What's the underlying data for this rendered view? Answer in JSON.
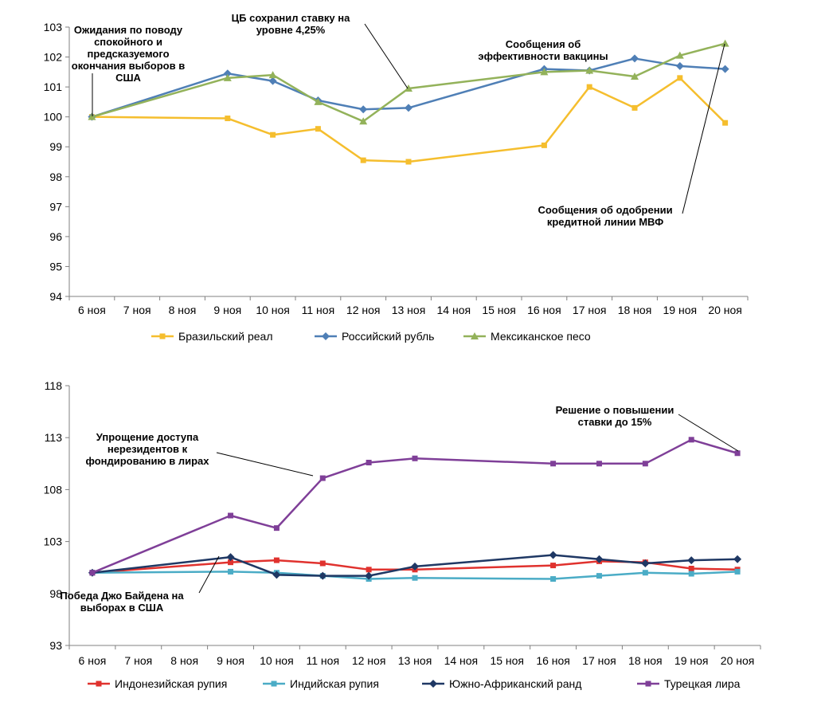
{
  "chart_data": [
    {
      "type": "line",
      "categories": [
        "6 ноя",
        "7 ноя",
        "8 ноя",
        "9 ноя",
        "10 ноя",
        "11 ноя",
        "12 ноя",
        "13 ноя",
        "14 ноя",
        "15 ноя",
        "16 ноя",
        "17 ноя",
        "18 ноя",
        "19 ноя",
        "20 ноя"
      ],
      "ylim": [
        94,
        103
      ],
      "yticks": [
        94,
        95,
        96,
        97,
        98,
        99,
        100,
        101,
        102,
        103
      ],
      "grid": false,
      "legend_position": "bottom",
      "series": [
        {
          "name": "Бразильский реал",
          "color": "#F5BE2E",
          "marker": "square",
          "points": [
            [
              0,
              100.0
            ],
            [
              3,
              99.95
            ],
            [
              4,
              99.4
            ],
            [
              5,
              99.6
            ],
            [
              6,
              98.55
            ],
            [
              7,
              98.5
            ],
            [
              10,
              99.05
            ],
            [
              11,
              101.0
            ],
            [
              12,
              100.3
            ],
            [
              13,
              101.3
            ],
            [
              14,
              99.8
            ]
          ]
        },
        {
          "name": "Российский рубль",
          "color": "#4F7FB6",
          "marker": "diamond",
          "points": [
            [
              0,
              100.0
            ],
            [
              3,
              101.45
            ],
            [
              4,
              101.2
            ],
            [
              5,
              100.55
            ],
            [
              6,
              100.25
            ],
            [
              7,
              100.3
            ],
            [
              10,
              101.6
            ],
            [
              11,
              101.55
            ],
            [
              12,
              101.95
            ],
            [
              13,
              101.7
            ],
            [
              14,
              101.6
            ]
          ]
        },
        {
          "name": "Мексиканское песо",
          "color": "#93B25A",
          "marker": "triangle",
          "points": [
            [
              0,
              100.0
            ],
            [
              3,
              101.3
            ],
            [
              4,
              101.4
            ],
            [
              5,
              100.5
            ],
            [
              6,
              99.85
            ],
            [
              7,
              100.95
            ],
            [
              10,
              101.5
            ],
            [
              11,
              101.55
            ],
            [
              12,
              101.35
            ],
            [
              13,
              102.05
            ],
            [
              14,
              102.45
            ]
          ]
        }
      ],
      "annotations": [
        {
          "id": "elections",
          "lines": [
            "Ожидания по поводу",
            "спокойного и",
            "предсказуемого",
            "окончания выборов в",
            "США"
          ],
          "target": [
            0,
            100.0
          ]
        },
        {
          "id": "rate",
          "lines": [
            "ЦБ сохранил ставку на",
            "уровне 4,25%"
          ],
          "target": [
            7,
            100.95
          ]
        },
        {
          "id": "vaccine",
          "lines": [
            "Сообщения об",
            "эффективности вакцины"
          ]
        },
        {
          "id": "imf",
          "lines": [
            "Сообщения об одобрении",
            "кредитной линии МВФ"
          ],
          "target": [
            14,
            102.45
          ]
        }
      ]
    },
    {
      "type": "line",
      "categories": [
        "6 ноя",
        "7 ноя",
        "8 ноя",
        "9 ноя",
        "10 ноя",
        "11 ноя",
        "12 ноя",
        "13 ноя",
        "14 ноя",
        "15 ноя",
        "16 ноя",
        "17 ноя",
        "18 ноя",
        "19 ноя",
        "20 ноя"
      ],
      "ylim": [
        93,
        118
      ],
      "yticks": [
        93,
        98,
        103,
        108,
        113,
        118
      ],
      "grid": false,
      "legend_position": "bottom",
      "series": [
        {
          "name": "Индонезийская рупия",
          "color": "#E0322E",
          "marker": "square",
          "points": [
            [
              0,
              100.0
            ],
            [
              3,
              101.0
            ],
            [
              4,
              101.2
            ],
            [
              5,
              100.9
            ],
            [
              6,
              100.3
            ],
            [
              7,
              100.3
            ],
            [
              10,
              100.7
            ],
            [
              11,
              101.1
            ],
            [
              12,
              101.0
            ],
            [
              13,
              100.4
            ],
            [
              14,
              100.3
            ]
          ]
        },
        {
          "name": "Индийская рупия",
          "color": "#4BACC6",
          "marker": "square",
          "points": [
            [
              0,
              100.0
            ],
            [
              3,
              100.1
            ],
            [
              4,
              100.0
            ],
            [
              5,
              99.7
            ],
            [
              6,
              99.4
            ],
            [
              7,
              99.5
            ],
            [
              10,
              99.4
            ],
            [
              11,
              99.7
            ],
            [
              12,
              100.0
            ],
            [
              13,
              99.9
            ],
            [
              14,
              100.1
            ]
          ]
        },
        {
          "name": "Южно-Африканский ранд",
          "color": "#1F3864",
          "marker": "diamond",
          "points": [
            [
              0,
              100.0
            ],
            [
              3,
              101.5
            ],
            [
              4,
              99.8
            ],
            [
              5,
              99.7
            ],
            [
              6,
              99.7
            ],
            [
              7,
              100.6
            ],
            [
              10,
              101.7
            ],
            [
              11,
              101.3
            ],
            [
              12,
              100.9
            ],
            [
              13,
              101.2
            ],
            [
              14,
              101.3
            ]
          ]
        },
        {
          "name": "Турецкая лира",
          "color": "#7F3F98",
          "marker": "square",
          "points": [
            [
              0,
              100.0
            ],
            [
              3,
              105.5
            ],
            [
              4,
              104.3
            ],
            [
              5,
              109.1
            ],
            [
              6,
              110.6
            ],
            [
              7,
              111.0
            ],
            [
              10,
              110.5
            ],
            [
              11,
              110.5
            ],
            [
              12,
              110.5
            ],
            [
              13,
              112.8
            ],
            [
              14,
              111.5
            ]
          ]
        }
      ],
      "annotations": [
        {
          "id": "lira-access",
          "lines": [
            "Упрощение доступа",
            "нерезидентов к",
            "фондированию в лирах"
          ],
          "target": [
            5,
            109.1
          ]
        },
        {
          "id": "lira-rate",
          "lines": [
            "Решение о повышении",
            "ставки до 15%"
          ],
          "target": [
            14,
            111.5
          ]
        },
        {
          "id": "biden",
          "lines": [
            "Победа Джо Байдена на",
            "выборах в США"
          ],
          "target": [
            3,
            101.5
          ]
        }
      ]
    }
  ]
}
